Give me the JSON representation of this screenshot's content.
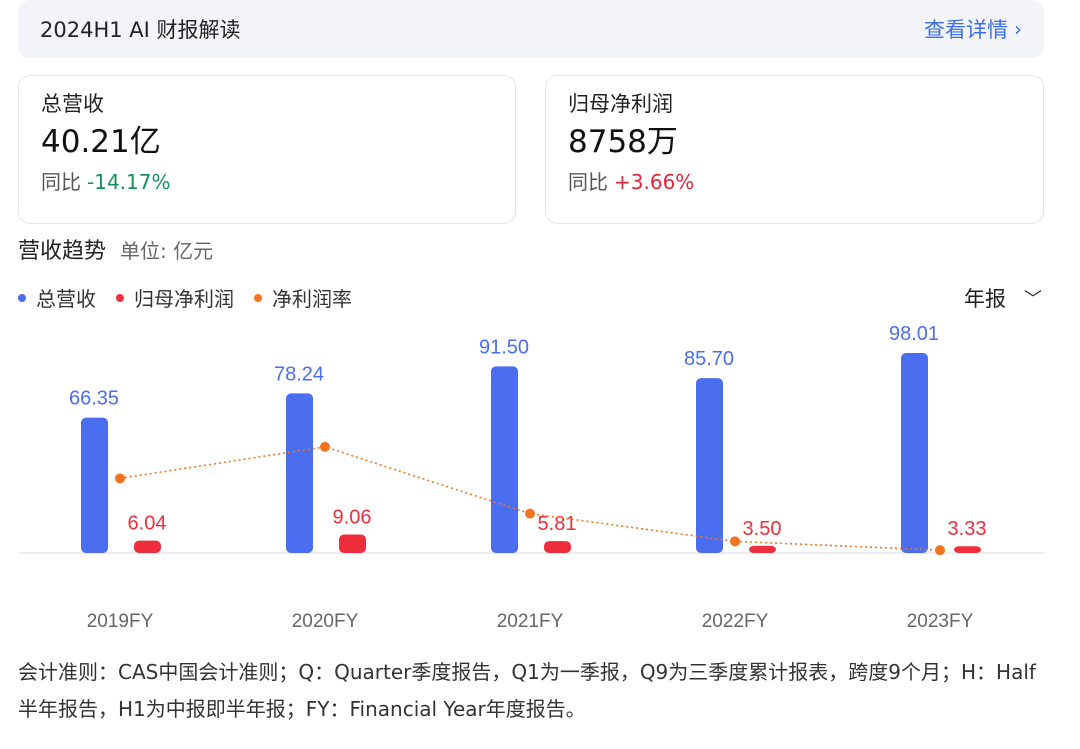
{
  "header": {
    "title": "2024H1 AI 财报解读",
    "link_label": "查看详情",
    "link_icon": "chevron-right-icon"
  },
  "cards": [
    {
      "label": "总营收",
      "value": "40.21亿",
      "yoy_label": "同比",
      "yoy_value": "-14.17%"
    },
    {
      "label": "归母净利润",
      "value": "8758万",
      "yoy_label": "同比",
      "yoy_value": "+3.66%"
    }
  ],
  "section": {
    "title": "营收趋势",
    "unit": "单位: 亿元"
  },
  "legend": [
    {
      "label": "总营收",
      "color": "#4b6ef0"
    },
    {
      "label": "归母净利润",
      "color": "#ee2d3d"
    },
    {
      "label": "净利润率",
      "color": "#f5741f"
    }
  ],
  "period_select": {
    "value": "年报",
    "icon": "chevron-down-icon"
  },
  "colors": {
    "revenue": "#4b6ef0",
    "profit": "#ee2d3d",
    "margin": "#f5741f",
    "up": "#e0263a",
    "down": "#15925a",
    "link": "#3d6df0"
  },
  "chart_data": {
    "type": "bar",
    "categories": [
      "2019FY",
      "2020FY",
      "2021FY",
      "2022FY",
      "2023FY"
    ],
    "series": [
      {
        "name": "总营收",
        "values": [
          66.35,
          78.24,
          91.5,
          85.7,
          98.01
        ]
      },
      {
        "name": "归母净利润",
        "values": [
          6.04,
          9.06,
          5.81,
          3.5,
          3.33
        ]
      },
      {
        "name": "净利润率",
        "type": "line",
        "values": [
          9.1,
          11.6,
          6.3,
          4.1,
          3.4
        ]
      }
    ],
    "ylim": [
      0,
      100
    ],
    "grid": false,
    "legend": "top-left"
  },
  "footnote": "会计准则：CAS中国会计准则；Q：Quarter季度报告，Q1为一季报，Q9为三季度累计报表，跨度9个月；H：Half半年报告，H1为中报即半年报；FY：Financial Year年度报告。"
}
